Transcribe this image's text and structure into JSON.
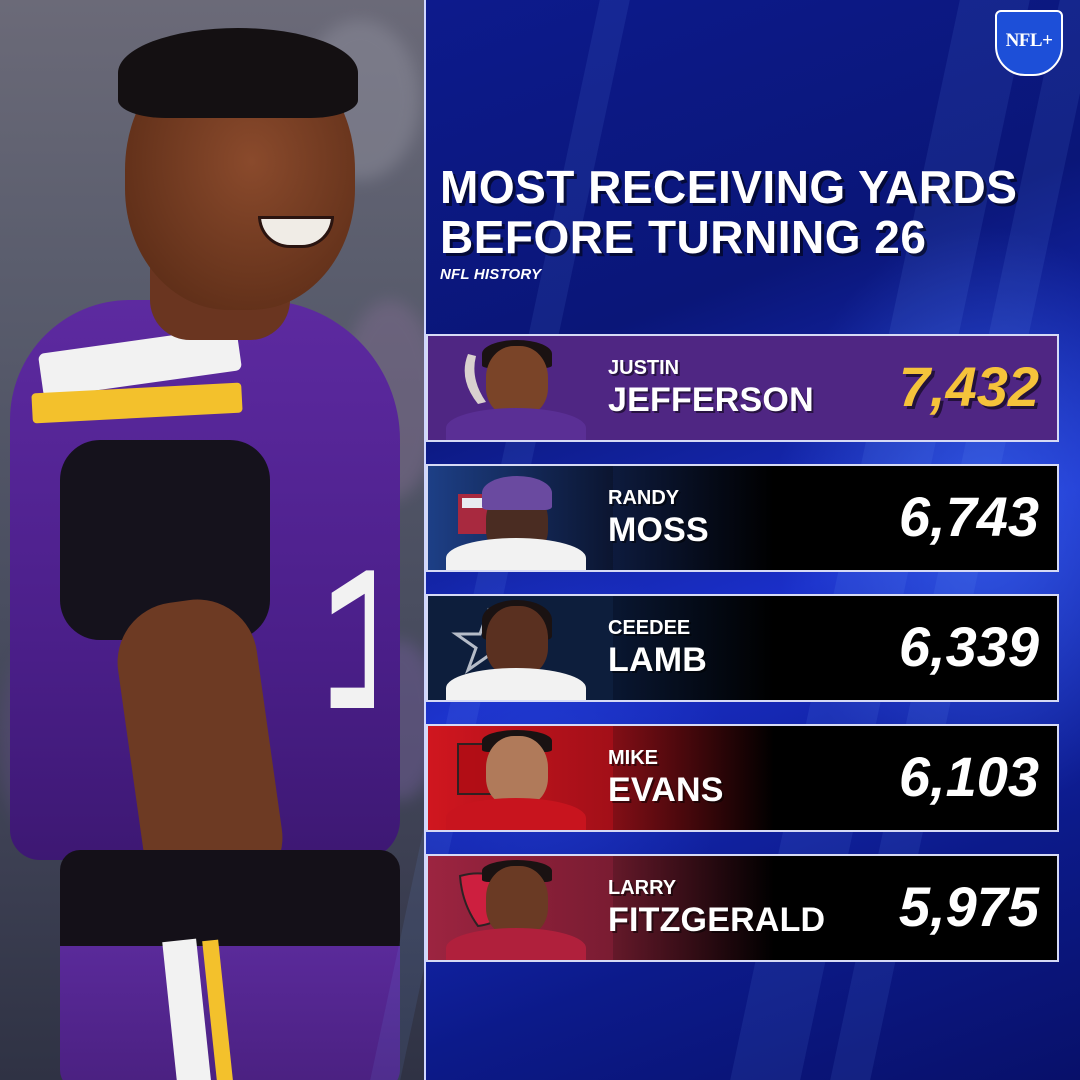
{
  "logo": {
    "text": "NFL+"
  },
  "title": {
    "line1": "MOST RECEIVING YARDS",
    "line2": "BEFORE TURNING 26",
    "subtitle": "NFL HISTORY"
  },
  "colors": {
    "gold": "#f5c33b",
    "vikings_purple": "#4f2683",
    "background_blue": "#0d1a8c"
  },
  "rankings": [
    {
      "first": "JUSTIN",
      "last": "JEFFERSON",
      "yards": "7,432",
      "team_icon": "vikings-horn-icon"
    },
    {
      "first": "RANDY",
      "last": "MOSS",
      "yards": "6,743",
      "team_icon": "hall-of-fame-icon"
    },
    {
      "first": "CEEDEE",
      "last": "LAMB",
      "yards": "6,339",
      "team_icon": "cowboys-star-icon"
    },
    {
      "first": "MIKE",
      "last": "EVANS",
      "yards": "6,103",
      "team_icon": "buccaneers-flag-icon"
    },
    {
      "first": "LARRY",
      "last": "FITZGERALD",
      "yards": "5,975",
      "team_icon": "cardinals-head-icon"
    }
  ]
}
